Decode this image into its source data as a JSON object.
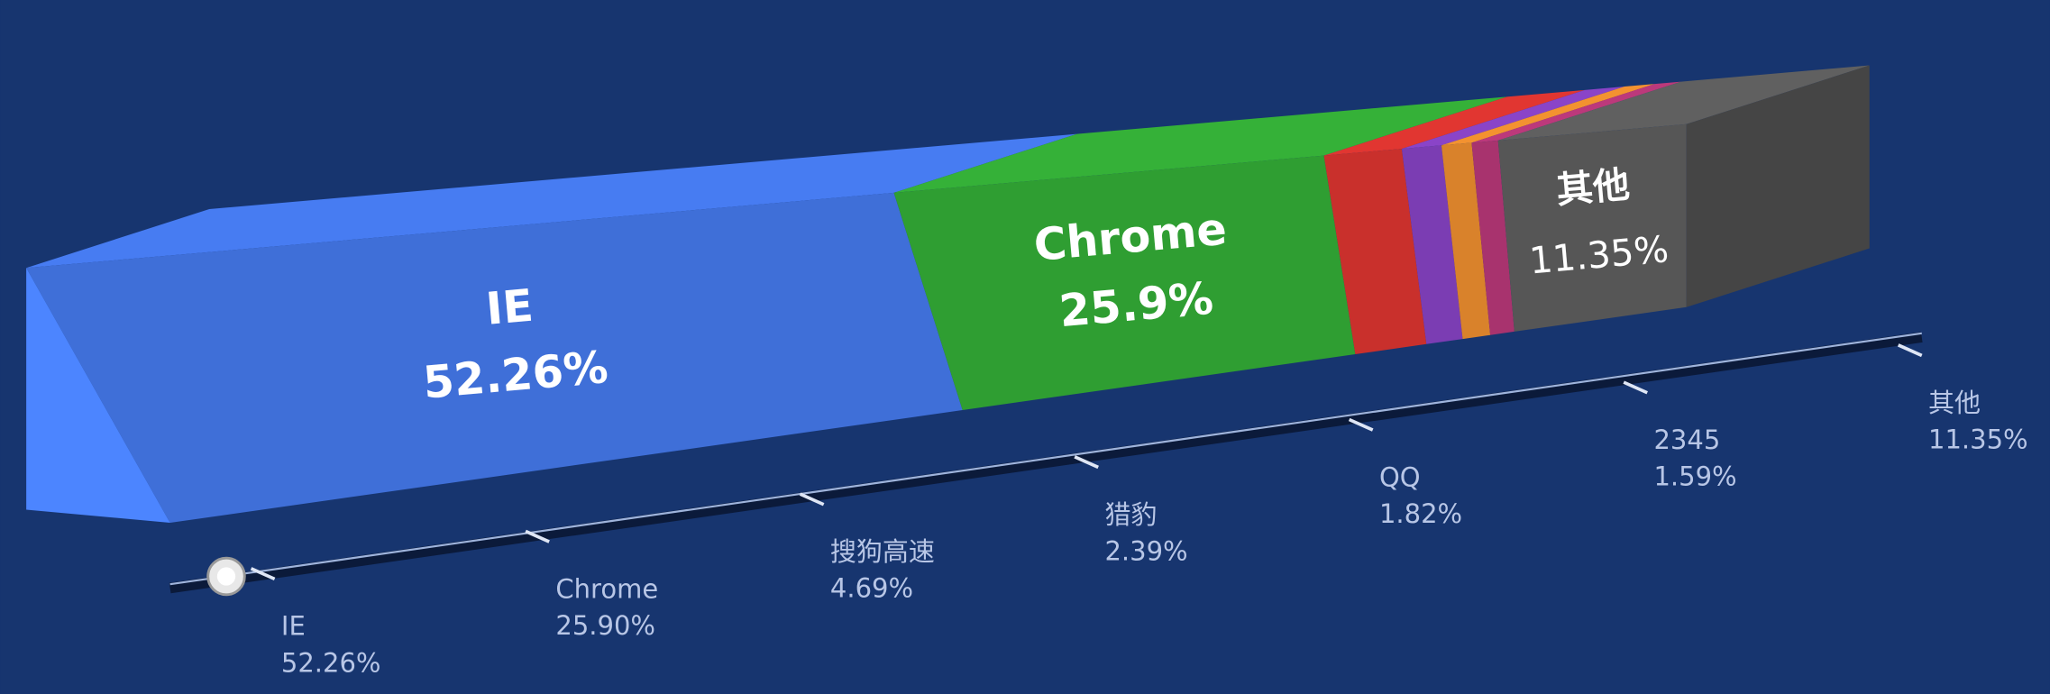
{
  "chart_data": {
    "type": "bar3d",
    "categories": [
      "IE",
      "Chrome",
      "搜狗高速",
      "猎豹",
      "QQ",
      "2345",
      "其他"
    ],
    "values": [
      52.26,
      25.9,
      4.69,
      2.39,
      1.82,
      1.59,
      11.35
    ],
    "value_labels": [
      "52.26%",
      "25.90%",
      "4.69%",
      "2.39%",
      "1.82%",
      "1.59%",
      "11.35%"
    ],
    "bar_labels": [
      "52.26%",
      "25.9%",
      null,
      null,
      null,
      null,
      "11.35%"
    ],
    "colors": [
      "#3f6fd8",
      "#2f9e32",
      "#c9302c",
      "#7b3db3",
      "#d9822b",
      "#a8336e",
      "#565656"
    ]
  }
}
